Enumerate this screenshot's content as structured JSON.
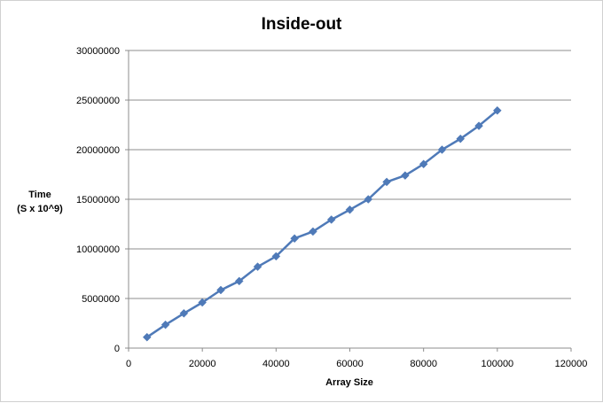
{
  "chart_data": {
    "type": "line",
    "title": "Inside-out",
    "xlabel": "Array Size",
    "ylabel_lines": [
      "Time",
      "(S x 10^9)"
    ],
    "xlim": [
      0,
      120000
    ],
    "ylim": [
      0,
      30000000
    ],
    "x_ticks": [
      0,
      20000,
      40000,
      60000,
      80000,
      100000,
      120000
    ],
    "y_ticks": [
      0,
      5000000,
      10000000,
      15000000,
      20000000,
      25000000,
      30000000
    ],
    "grid": {
      "horizontal": true,
      "vertical": false
    },
    "legend": "none",
    "series": [
      {
        "color": "#4f7ab8",
        "marker": "diamond",
        "points": [
          [
            5000,
            1100000
          ],
          [
            10000,
            2350000
          ],
          [
            15000,
            3500000
          ],
          [
            20000,
            4600000
          ],
          [
            25000,
            5850000
          ],
          [
            30000,
            6750000
          ],
          [
            35000,
            8200000
          ],
          [
            40000,
            9250000
          ],
          [
            45000,
            11050000
          ],
          [
            50000,
            11750000
          ],
          [
            55000,
            12950000
          ],
          [
            60000,
            13950000
          ],
          [
            65000,
            15000000
          ],
          [
            70000,
            16750000
          ],
          [
            75000,
            17400000
          ],
          [
            80000,
            18550000
          ],
          [
            85000,
            20000000
          ],
          [
            90000,
            21100000
          ],
          [
            95000,
            22400000
          ],
          [
            100000,
            23950000
          ]
        ]
      }
    ]
  }
}
